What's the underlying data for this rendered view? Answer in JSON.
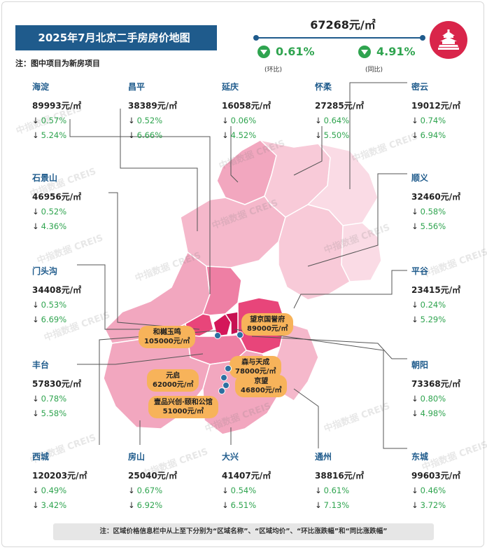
{
  "header": {
    "title": "2025年7月北京二手房房价地图",
    "note": "注：图中项目为新房项目"
  },
  "overall": {
    "price": "67268元/㎡",
    "mom_change": "0.61%",
    "mom_label": "(环比)",
    "yoy_change": "4.91%",
    "yoy_label": "(同比)"
  },
  "watermark": "中指数据 CREIS",
  "colors": {
    "title_bg": "#1f5b8c",
    "name_text": "#1f5b8c",
    "decline_green": "#2fa44f",
    "logo_red": "#d9254a",
    "project_label": "#f7b35a"
  },
  "districts": [
    {
      "name": "海淀",
      "price": "89993元/㎡",
      "mom": "0.57%",
      "yoy": "5.24%"
    },
    {
      "name": "昌平",
      "price": "38389元/㎡",
      "mom": "0.52%",
      "yoy": "6.66%"
    },
    {
      "name": "延庆",
      "price": "16058元/㎡",
      "mom": "0.06%",
      "yoy": "4.52%"
    },
    {
      "name": "怀柔",
      "price": "27285元/㎡",
      "mom": "0.64%",
      "yoy": "5.50%"
    },
    {
      "name": "密云",
      "price": "19012元/㎡",
      "mom": "0.74%",
      "yoy": "6.94%"
    },
    {
      "name": "石景山",
      "price": "46956元/㎡",
      "mom": "0.52%",
      "yoy": "4.36%"
    },
    {
      "name": "顺义",
      "price": "32460元/㎡",
      "mom": "0.58%",
      "yoy": "5.56%"
    },
    {
      "name": "门头沟",
      "price": "34408元/㎡",
      "mom": "0.53%",
      "yoy": "6.69%"
    },
    {
      "name": "平谷",
      "price": "23415元/㎡",
      "mom": "0.24%",
      "yoy": "5.29%"
    },
    {
      "name": "丰台",
      "price": "57830元/㎡",
      "mom": "0.78%",
      "yoy": "5.58%"
    },
    {
      "name": "朝阳",
      "price": "73368元/㎡",
      "mom": "0.80%",
      "yoy": "4.98%"
    },
    {
      "name": "西城",
      "price": "120203元/㎡",
      "mom": "0.49%",
      "yoy": "3.42%"
    },
    {
      "name": "房山",
      "price": "25040元/㎡",
      "mom": "0.67%",
      "yoy": "6.92%"
    },
    {
      "name": "大兴",
      "price": "41407元/㎡",
      "mom": "0.54%",
      "yoy": "6.51%"
    },
    {
      "name": "通州",
      "price": "38816元/㎡",
      "mom": "0.61%",
      "yoy": "7.13%"
    },
    {
      "name": "东城",
      "price": "99603元/㎡",
      "mom": "0.46%",
      "yoy": "3.72%"
    }
  ],
  "projects": [
    {
      "name": "和樾玉鸣",
      "price": "105000元/㎡"
    },
    {
      "name": "望京国誉府",
      "price": "89000元/㎡"
    },
    {
      "name": "森与天成",
      "price": "78000元/㎡"
    },
    {
      "name": "元启",
      "price": "62000元/㎡"
    },
    {
      "name": "京望",
      "price": "46800元/㎡"
    },
    {
      "name": "壹品兴创·颐和公馆",
      "price": "51000元/㎡"
    }
  ],
  "footnote": "注：区域价格信息栏中从上至下分别为“区域名称”、“区域均价”、“环比涨跌幅”和“同比涨跌幅”"
}
